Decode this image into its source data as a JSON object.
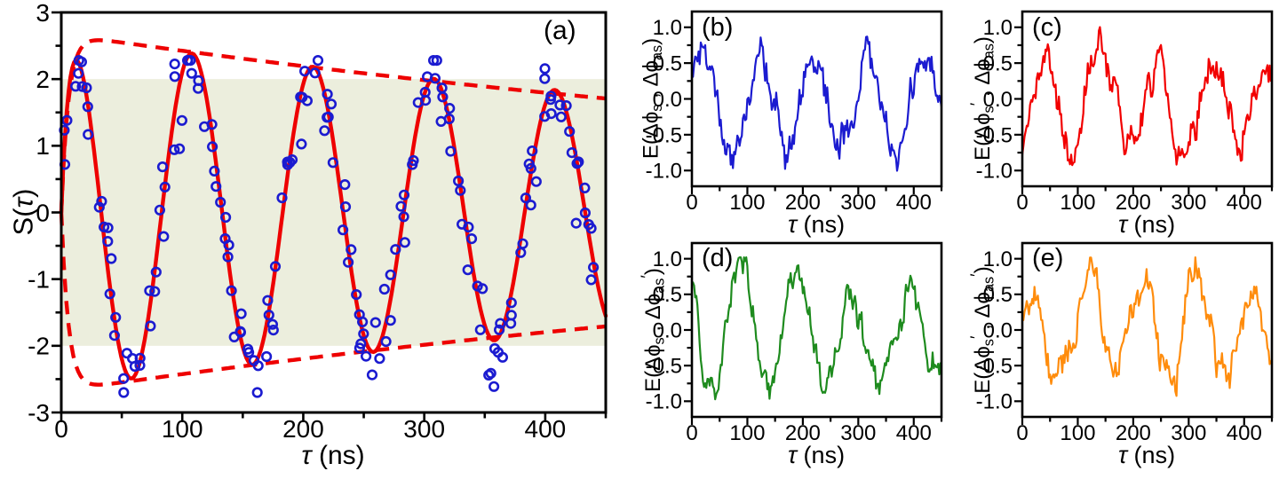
{
  "figure": {
    "background": "#ffffff",
    "description": "Five-panel physics measurement figure: Bell parameter S(τ) with classical bound band, and four phase-correlation signals E vs τ"
  },
  "chart_data": [
    {
      "id": "a",
      "type": "scatter+line",
      "panel_label": "(a)",
      "xlabel_text": "τ (ns)",
      "xlabel_segments": [
        {
          "t": "τ",
          "style": "i"
        },
        {
          "t": " (ns)"
        }
      ],
      "ylabel_text": "S(τ)",
      "ylabel_segments": [
        {
          "t": "S("
        },
        {
          "t": "τ",
          "style": "i"
        },
        {
          "t": ")"
        }
      ],
      "x_range": [
        0,
        450
      ],
      "y_range": [
        -3,
        3
      ],
      "x_ticks": [
        {
          "v": 0,
          "label": "0"
        },
        {
          "v": 100,
          "label": "100"
        },
        {
          "v": 200,
          "label": "200"
        },
        {
          "v": 300,
          "label": "300"
        },
        {
          "v": 400,
          "label": "400"
        }
      ],
      "x_minor_ticks": [
        50,
        150,
        250,
        350,
        450
      ],
      "y_ticks": [
        {
          "v": 3,
          "label": "3"
        },
        {
          "v": 2,
          "label": "2"
        },
        {
          "v": 1,
          "label": "1"
        },
        {
          "v": 0,
          "label": "0"
        },
        {
          "v": -1,
          "label": "-1"
        },
        {
          "v": -2,
          "label": "-2"
        },
        {
          "v": -3,
          "label": "-3"
        }
      ],
      "y_minor_ticks": [
        2.5,
        1.5,
        0.5,
        -0.5,
        -1.5,
        -2.5
      ],
      "grid": false,
      "classical_band": {
        "from": -2,
        "to": 2,
        "color": "#eceedd",
        "note": "|S| <= 2 classical region"
      },
      "fit_curve": {
        "model": "S(t)=A*(1-exp(-t/rise))*exp(-t/decay)*cos(2*pi*(t-peak)/period)",
        "A": 2.62,
        "rise_ns": 5,
        "decay_ns": 1150,
        "period_ns": 100,
        "peak_tau_ns": 8,
        "color": "#ee0000",
        "width": 4.4,
        "style": "solid",
        "peaks": [
          [
            8,
            2.3
          ],
          [
            108,
            2.39
          ],
          [
            208,
            2.19
          ],
          [
            308,
            2.0
          ],
          [
            408,
            1.83
          ]
        ],
        "troughs": [
          [
            58,
            -2.49
          ],
          [
            158,
            -2.28
          ],
          [
            258,
            -2.09
          ],
          [
            358,
            -1.92
          ]
        ]
      },
      "envelope_curves": {
        "model": "+/- A*(1-exp(-t/rise))*exp(-t/decay)",
        "A": 2.68,
        "rise_ns": 6,
        "decay_ns": 1000,
        "color": "#ee0000",
        "width": 4.4,
        "style": "dashed",
        "dash": [
          15,
          10
        ],
        "start_value": 2.6,
        "end_value": 1.6
      },
      "scatter_points": {
        "marker": "open-circle",
        "color": "#1b1bd0",
        "radius": 4.8,
        "stroke_width": 2.6,
        "count": 186,
        "clusters": 64,
        "spread_sigma": 0.34,
        "seed": 20,
        "note": "measured S values scattered about fit curve, clipped to [-2.7, 2.28]"
      }
    },
    {
      "id": "b",
      "type": "line",
      "panel_label": "(b)",
      "xlabel_text": "τ (ns)",
      "xlabel_segments": [
        {
          "t": "τ",
          "style": "i"
        },
        {
          "t": " (ns)"
        }
      ],
      "ylabel_text": "E(Δϕs , Δϕas)",
      "ylabel_segments": [
        {
          "t": "E(Δϕ"
        },
        {
          "t": "s",
          "style": "sub"
        },
        {
          "t": " , Δϕ"
        },
        {
          "t": "as",
          "style": "sub"
        },
        {
          "t": ")"
        }
      ],
      "x_range": [
        0,
        450
      ],
      "y_range": [
        -1.22,
        1.22
      ],
      "x_ticks": [
        {
          "v": 0,
          "label": "0"
        },
        {
          "v": 100,
          "label": "100"
        },
        {
          "v": 200,
          "label": "200"
        },
        {
          "v": 300,
          "label": "300"
        },
        {
          "v": 400,
          "label": "400"
        }
      ],
      "x_minor_ticks": [
        50,
        150,
        250,
        350,
        450
      ],
      "y_ticks": [
        {
          "v": 1,
          "label": "1.0"
        },
        {
          "v": 0.5,
          "label": "0.5"
        },
        {
          "v": 0,
          "label": "0.0"
        },
        {
          "v": -0.5,
          "label": "-0.5"
        },
        {
          "v": -1,
          "label": "-1.0"
        }
      ],
      "y_minor_ticks": [
        0.75,
        0.25,
        -0.25,
        -0.75
      ],
      "grid": false,
      "waveform": {
        "model": "E(t)~A*cos(2*pi*(t-peak)/period)+correlated noise",
        "A": 0.64,
        "period_ns": 100,
        "peak_tau_ns": 18,
        "amp_decay_ns": 4000,
        "noise_sd": 0.2,
        "seed": 11,
        "step_ns": 2,
        "clip": [
          -1.02,
          1.02
        ],
        "color": "#1b1bd0",
        "width": 2.2
      }
    },
    {
      "id": "c",
      "type": "line",
      "panel_label": "(c)",
      "xlabel_text": "τ (ns)",
      "xlabel_segments": [
        {
          "t": "τ",
          "style": "i"
        },
        {
          "t": " (ns)"
        }
      ],
      "ylabel_text": "E(Δϕs′ , Δϕas)",
      "ylabel_segments": [
        {
          "t": "E(Δϕ"
        },
        {
          "t": "s",
          "style": "sub"
        },
        {
          "t": "′",
          "style": "sup"
        },
        {
          "t": " , Δϕ"
        },
        {
          "t": "as",
          "style": "sub"
        },
        {
          "t": ")"
        }
      ],
      "x_range": [
        0,
        450
      ],
      "y_range": [
        -1.22,
        1.22
      ],
      "x_ticks": [
        {
          "v": 0,
          "label": "0"
        },
        {
          "v": 100,
          "label": "100"
        },
        {
          "v": 200,
          "label": "200"
        },
        {
          "v": 300,
          "label": "300"
        },
        {
          "v": 400,
          "label": "400"
        }
      ],
      "x_minor_ticks": [
        50,
        150,
        250,
        350,
        450
      ],
      "y_ticks": [
        {
          "v": 1,
          "label": "1.0"
        },
        {
          "v": 0.5,
          "label": "0.5"
        },
        {
          "v": 0,
          "label": "0.0"
        },
        {
          "v": -0.5,
          "label": "-0.5"
        },
        {
          "v": -1,
          "label": "-1.0"
        }
      ],
      "y_minor_ticks": [
        0.75,
        0.25,
        -0.25,
        -0.75
      ],
      "grid": false,
      "waveform": {
        "model": "E(t)~A*cos(2*pi*(t-peak)/period)+correlated noise",
        "A": 0.66,
        "period_ns": 100,
        "peak_tau_ns": 42,
        "amp_decay_ns": 4000,
        "noise_sd": 0.2,
        "seed": 23,
        "step_ns": 2,
        "clip": [
          -1.02,
          1.02
        ],
        "color": "#f20000",
        "width": 2.2
      }
    },
    {
      "id": "d",
      "type": "line",
      "panel_label": "(d)",
      "xlabel_text": "τ (ns)",
      "xlabel_segments": [
        {
          "t": "τ",
          "style": "i"
        },
        {
          "t": " (ns)"
        }
      ],
      "ylabel_text": "E(Δϕs , Δϕas′)",
      "ylabel_segments": [
        {
          "t": "E(Δϕ"
        },
        {
          "t": "s",
          "style": "sub"
        },
        {
          "t": " , Δϕ"
        },
        {
          "t": "as",
          "style": "sub"
        },
        {
          "t": "′",
          "style": "sup"
        },
        {
          "t": ")"
        }
      ],
      "x_range": [
        0,
        450
      ],
      "y_range": [
        -1.22,
        1.22
      ],
      "x_ticks": [
        {
          "v": 0,
          "label": "0"
        },
        {
          "v": 100,
          "label": "100"
        },
        {
          "v": 200,
          "label": "200"
        },
        {
          "v": 300,
          "label": "300"
        },
        {
          "v": 400,
          "label": "400"
        }
      ],
      "x_minor_ticks": [
        50,
        150,
        250,
        350,
        450
      ],
      "y_ticks": [
        {
          "v": 1,
          "label": "1.0"
        },
        {
          "v": 0.5,
          "label": "0.5"
        },
        {
          "v": 0,
          "label": "0.0"
        },
        {
          "v": -0.5,
          "label": "-0.5"
        },
        {
          "v": -1,
          "label": "-1.0"
        }
      ],
      "y_minor_ticks": [
        0.75,
        0.25,
        -0.25,
        -0.75
      ],
      "grid": false,
      "waveform": {
        "model": "E(t)~A*cos(2*pi*(t-peak)/period)+correlated noise",
        "A": 0.72,
        "period_ns": 100,
        "peak_tau_ns": 90,
        "amp_decay_ns": 4000,
        "noise_sd": 0.2,
        "seed": 37,
        "step_ns": 2,
        "clip": [
          -1.02,
          1.02
        ],
        "color": "#1e8b1e",
        "width": 2.2
      }
    },
    {
      "id": "e",
      "type": "line",
      "panel_label": "(e)",
      "xlabel_text": "τ (ns)",
      "xlabel_segments": [
        {
          "t": "τ",
          "style": "i"
        },
        {
          "t": " (ns)"
        }
      ],
      "ylabel_text": "E(Δϕs′ , Δϕas′)",
      "ylabel_segments": [
        {
          "t": "E(Δϕ"
        },
        {
          "t": "s",
          "style": "sub"
        },
        {
          "t": "′",
          "style": "sup"
        },
        {
          "t": " , Δϕ"
        },
        {
          "t": "as",
          "style": "sub"
        },
        {
          "t": "′",
          "style": "sup"
        },
        {
          "t": ")"
        }
      ],
      "x_range": [
        0,
        450
      ],
      "y_range": [
        -1.22,
        1.22
      ],
      "x_ticks": [
        {
          "v": 0,
          "label": "0"
        },
        {
          "v": 100,
          "label": "100"
        },
        {
          "v": 200,
          "label": "200"
        },
        {
          "v": 300,
          "label": "300"
        },
        {
          "v": 400,
          "label": "400"
        }
      ],
      "x_minor_ticks": [
        50,
        150,
        250,
        350,
        450
      ],
      "y_ticks": [
        {
          "v": 1,
          "label": "1.0"
        },
        {
          "v": 0.5,
          "label": "0.5"
        },
        {
          "v": 0,
          "label": "0.0"
        },
        {
          "v": -0.5,
          "label": "-0.5"
        },
        {
          "v": -1,
          "label": "-1.0"
        }
      ],
      "y_minor_ticks": [
        0.75,
        0.25,
        -0.25,
        -0.75
      ],
      "grid": false,
      "waveform": {
        "model": "E(t)~A*cos(2*pi*(t-peak)/period)+correlated noise",
        "A": 0.68,
        "period_ns": 100,
        "peak_tau_ns": 15,
        "amp_decay_ns": 4000,
        "noise_sd": 0.2,
        "seed": 51,
        "step_ns": 2,
        "clip": [
          -1.02,
          1.02
        ],
        "color": "#ff8c0c",
        "width": 2.2
      }
    }
  ]
}
